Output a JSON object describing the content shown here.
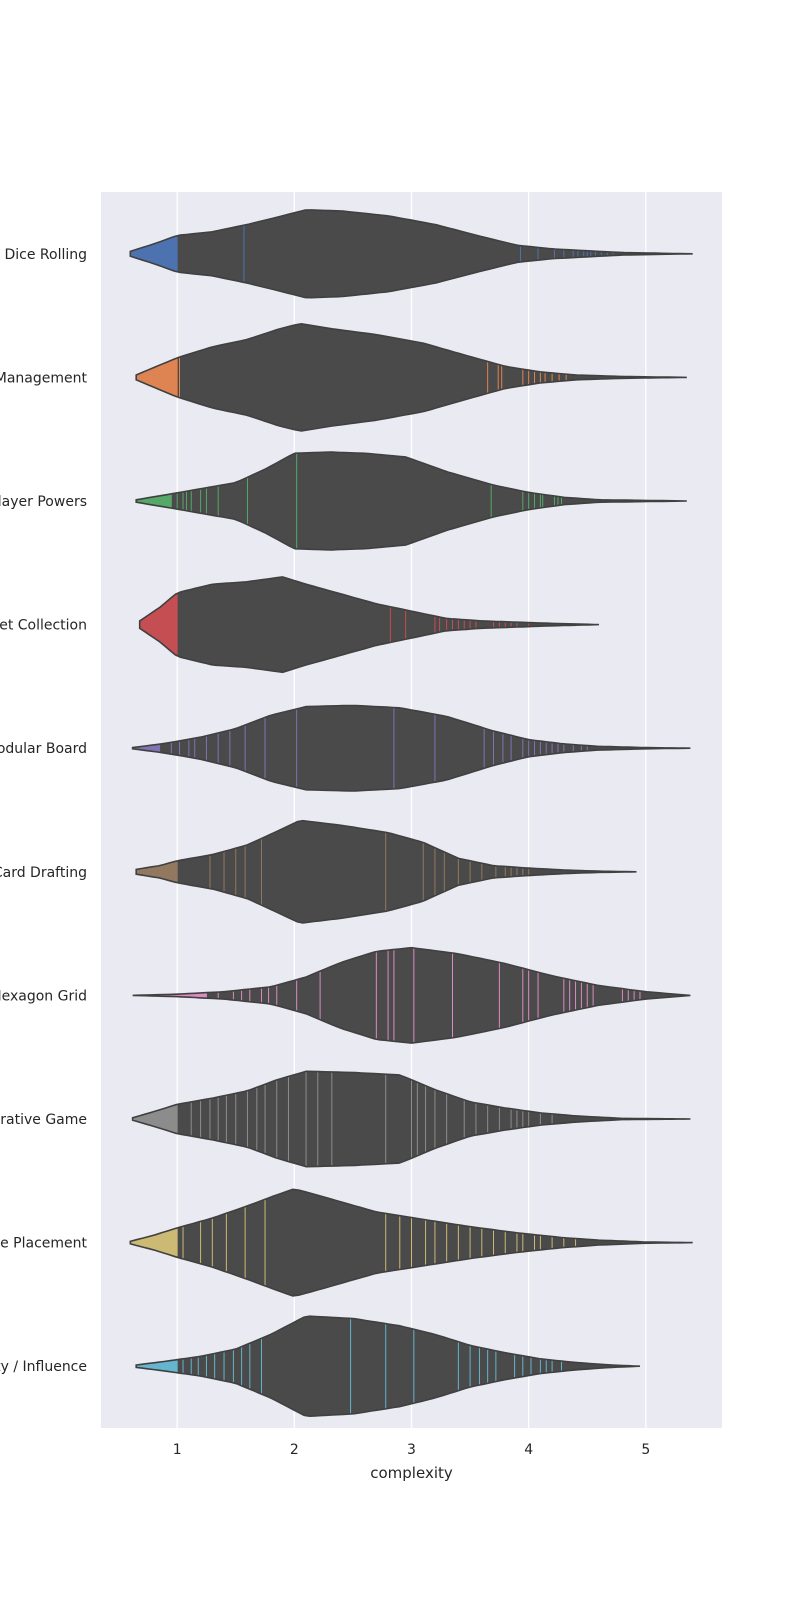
{
  "chart_data": {
    "type": "violin",
    "orientation": "horizontal",
    "xlabel": "complexity",
    "ylabel": "",
    "xlim": [
      0.35,
      5.65
    ],
    "xticks": [
      1,
      2,
      3,
      4,
      5
    ],
    "grid": true,
    "violin_fill": "#4a4a4a",
    "background": "#eaeaf2",
    "series": [
      {
        "category": "Dice Rolling",
        "color": "#4c72b0",
        "min": 0.6,
        "max": 5.4,
        "shape": [
          [
            0.6,
            0.04
          ],
          [
            0.8,
            0.16
          ],
          [
            1.0,
            0.3
          ],
          [
            1.3,
            0.36
          ],
          [
            1.6,
            0.48
          ],
          [
            1.9,
            0.62
          ],
          [
            2.1,
            0.72
          ],
          [
            2.4,
            0.7
          ],
          [
            2.8,
            0.62
          ],
          [
            3.2,
            0.48
          ],
          [
            3.6,
            0.28
          ],
          [
            3.9,
            0.14
          ],
          [
            4.2,
            0.08
          ],
          [
            4.5,
            0.05
          ],
          [
            4.8,
            0.02
          ],
          [
            5.1,
            0.01
          ],
          [
            5.4,
            0.0
          ]
        ],
        "lines": [
          1.0,
          1.57,
          3.93,
          4.08,
          4.22,
          4.3,
          4.38,
          4.42,
          4.47,
          4.5,
          4.53,
          4.57,
          4.62,
          4.67,
          4.72
        ]
      },
      {
        "category": "Hand Management",
        "color": "#dd8452",
        "min": 0.65,
        "max": 5.35,
        "shape": [
          [
            0.65,
            0.04
          ],
          [
            0.8,
            0.16
          ],
          [
            1.0,
            0.32
          ],
          [
            1.3,
            0.5
          ],
          [
            1.6,
            0.62
          ],
          [
            1.85,
            0.78
          ],
          [
            2.05,
            0.88
          ],
          [
            2.3,
            0.8
          ],
          [
            2.7,
            0.7
          ],
          [
            3.1,
            0.56
          ],
          [
            3.5,
            0.34
          ],
          [
            3.8,
            0.18
          ],
          [
            4.1,
            0.09
          ],
          [
            4.4,
            0.04
          ],
          [
            4.8,
            0.015
          ],
          [
            5.35,
            0.0
          ]
        ],
        "lines": [
          1.0,
          1.02,
          3.65,
          3.74,
          3.77,
          3.95,
          4.0,
          4.05,
          4.1,
          4.14,
          4.2,
          4.26,
          4.32
        ]
      },
      {
        "category": "Variable Player Powers",
        "color": "#55a868",
        "min": 0.65,
        "max": 5.35,
        "shape": [
          [
            0.65,
            0.02
          ],
          [
            0.9,
            0.1
          ],
          [
            1.2,
            0.2
          ],
          [
            1.5,
            0.3
          ],
          [
            1.75,
            0.52
          ],
          [
            2.0,
            0.78
          ],
          [
            2.3,
            0.8
          ],
          [
            2.6,
            0.78
          ],
          [
            2.95,
            0.72
          ],
          [
            3.3,
            0.48
          ],
          [
            3.7,
            0.26
          ],
          [
            4.0,
            0.14
          ],
          [
            4.3,
            0.06
          ],
          [
            4.6,
            0.02
          ],
          [
            5.0,
            0.01
          ],
          [
            5.35,
            0.0
          ]
        ],
        "lines": [
          0.95,
          1.0,
          1.05,
          1.08,
          1.12,
          1.2,
          1.25,
          1.35,
          1.6,
          2.02,
          3.68,
          3.95,
          4.0,
          4.05,
          4.1,
          4.12,
          4.22,
          4.25,
          4.28
        ]
      },
      {
        "category": "Set Collection",
        "color": "#c44e52",
        "min": 0.68,
        "max": 4.6,
        "shape": [
          [
            0.68,
            0.06
          ],
          [
            0.85,
            0.28
          ],
          [
            1.0,
            0.52
          ],
          [
            1.3,
            0.66
          ],
          [
            1.6,
            0.7
          ],
          [
            1.9,
            0.78
          ],
          [
            2.1,
            0.66
          ],
          [
            2.4,
            0.5
          ],
          [
            2.7,
            0.34
          ],
          [
            3.0,
            0.22
          ],
          [
            3.3,
            0.1
          ],
          [
            3.6,
            0.06
          ],
          [
            3.9,
            0.04
          ],
          [
            4.2,
            0.02
          ],
          [
            4.6,
            0.0
          ]
        ],
        "lines": [
          1.0,
          2.82,
          2.95,
          3.2,
          3.24,
          3.3,
          3.35,
          3.4,
          3.45,
          3.5,
          3.55,
          3.7,
          3.75,
          3.8,
          3.85,
          3.9,
          4.0
        ]
      },
      {
        "category": "Modular Board",
        "color": "#8172b3",
        "min": 0.62,
        "max": 5.38,
        "shape": [
          [
            0.62,
            0.01
          ],
          [
            0.9,
            0.08
          ],
          [
            1.2,
            0.18
          ],
          [
            1.5,
            0.32
          ],
          [
            1.8,
            0.54
          ],
          [
            2.1,
            0.68
          ],
          [
            2.5,
            0.7
          ],
          [
            2.9,
            0.66
          ],
          [
            3.3,
            0.52
          ],
          [
            3.7,
            0.28
          ],
          [
            4.0,
            0.14
          ],
          [
            4.3,
            0.07
          ],
          [
            4.6,
            0.03
          ],
          [
            5.0,
            0.01
          ],
          [
            5.38,
            0.0
          ]
        ],
        "lines": [
          0.85,
          0.95,
          1.02,
          1.1,
          1.15,
          1.25,
          1.35,
          1.45,
          1.58,
          1.75,
          2.02,
          2.85,
          3.2,
          3.62,
          3.7,
          3.78,
          3.85,
          3.95,
          4.0,
          4.05,
          4.1,
          4.15,
          4.2,
          4.25,
          4.3,
          4.38,
          4.45,
          4.5
        ]
      },
      {
        "category": "Card Drafting",
        "color": "#937860",
        "min": 0.65,
        "max": 4.92,
        "shape": [
          [
            0.65,
            0.04
          ],
          [
            0.85,
            0.1
          ],
          [
            1.0,
            0.18
          ],
          [
            1.3,
            0.28
          ],
          [
            1.6,
            0.44
          ],
          [
            1.85,
            0.66
          ],
          [
            2.05,
            0.84
          ],
          [
            2.4,
            0.76
          ],
          [
            2.8,
            0.64
          ],
          [
            3.1,
            0.48
          ],
          [
            3.4,
            0.22
          ],
          [
            3.7,
            0.1
          ],
          [
            4.0,
            0.06
          ],
          [
            4.3,
            0.03
          ],
          [
            4.6,
            0.01
          ],
          [
            4.92,
            0.0
          ]
        ],
        "lines": [
          1.0,
          1.28,
          1.4,
          1.5,
          1.58,
          1.72,
          2.78,
          3.1,
          3.2,
          3.28,
          3.4,
          3.5,
          3.6,
          3.72,
          3.8,
          3.85,
          3.9,
          3.95,
          4.0
        ]
      },
      {
        "category": "Hexagon Grid",
        "color": "#da8bc3",
        "min": 0.62,
        "max": 5.38,
        "shape": [
          [
            0.62,
            0.0
          ],
          [
            1.0,
            0.02
          ],
          [
            1.4,
            0.06
          ],
          [
            1.8,
            0.14
          ],
          [
            2.1,
            0.3
          ],
          [
            2.4,
            0.54
          ],
          [
            2.7,
            0.72
          ],
          [
            3.0,
            0.78
          ],
          [
            3.4,
            0.68
          ],
          [
            3.8,
            0.52
          ],
          [
            4.2,
            0.32
          ],
          [
            4.6,
            0.16
          ],
          [
            5.0,
            0.06
          ],
          [
            5.38,
            0.0
          ]
        ],
        "lines": [
          1.25,
          1.35,
          1.48,
          1.55,
          1.62,
          1.72,
          1.78,
          1.85,
          2.02,
          2.22,
          2.7,
          2.8,
          2.85,
          3.02,
          3.35,
          3.75,
          3.95,
          4.0,
          4.08,
          4.3,
          4.35,
          4.4,
          4.45,
          4.5,
          4.55,
          4.8,
          4.85,
          4.9,
          4.95
        ]
      },
      {
        "category": "Cooperative Game",
        "color": "#8c8c8c",
        "min": 0.62,
        "max": 5.38,
        "shape": [
          [
            0.62,
            0.02
          ],
          [
            0.8,
            0.12
          ],
          [
            1.0,
            0.24
          ],
          [
            1.3,
            0.34
          ],
          [
            1.6,
            0.46
          ],
          [
            1.85,
            0.64
          ],
          [
            2.1,
            0.78
          ],
          [
            2.5,
            0.76
          ],
          [
            2.9,
            0.72
          ],
          [
            3.2,
            0.48
          ],
          [
            3.5,
            0.28
          ],
          [
            3.8,
            0.18
          ],
          [
            4.1,
            0.1
          ],
          [
            4.4,
            0.05
          ],
          [
            4.8,
            0.01
          ],
          [
            5.38,
            0.0
          ]
        ],
        "lines": [
          1.0,
          1.12,
          1.2,
          1.28,
          1.35,
          1.42,
          1.5,
          1.6,
          1.68,
          1.75,
          1.85,
          1.95,
          2.1,
          2.2,
          2.32,
          2.78,
          3.0,
          3.05,
          3.12,
          3.2,
          3.3,
          3.45,
          3.55,
          3.65,
          3.75,
          3.85,
          3.9,
          3.95,
          4.0,
          4.1,
          4.2
        ]
      },
      {
        "category": "Tile Placement",
        "color": "#ccb974",
        "min": 0.6,
        "max": 5.4,
        "shape": [
          [
            0.6,
            0.02
          ],
          [
            0.8,
            0.12
          ],
          [
            1.0,
            0.24
          ],
          [
            1.3,
            0.4
          ],
          [
            1.6,
            0.6
          ],
          [
            1.85,
            0.78
          ],
          [
            2.0,
            0.88
          ],
          [
            2.3,
            0.72
          ],
          [
            2.7,
            0.5
          ],
          [
            3.1,
            0.38
          ],
          [
            3.5,
            0.26
          ],
          [
            3.9,
            0.16
          ],
          [
            4.3,
            0.08
          ],
          [
            4.6,
            0.04
          ],
          [
            5.0,
            0.01
          ],
          [
            5.4,
            0.0
          ]
        ],
        "lines": [
          1.0,
          1.05,
          1.2,
          1.3,
          1.42,
          1.58,
          1.75,
          2.78,
          2.9,
          3.0,
          3.12,
          3.2,
          3.3,
          3.4,
          3.5,
          3.6,
          3.7,
          3.8,
          3.9,
          3.95,
          4.05,
          4.1,
          4.2,
          4.3,
          4.4
        ]
      },
      {
        "category": "Area Majority / Influence",
        "color": "#64b5cd",
        "min": 0.65,
        "max": 4.95,
        "shape": [
          [
            0.65,
            0.02
          ],
          [
            0.9,
            0.08
          ],
          [
            1.2,
            0.16
          ],
          [
            1.5,
            0.28
          ],
          [
            1.8,
            0.52
          ],
          [
            2.1,
            0.82
          ],
          [
            2.5,
            0.78
          ],
          [
            2.9,
            0.66
          ],
          [
            3.2,
            0.52
          ],
          [
            3.5,
            0.34
          ],
          [
            3.8,
            0.22
          ],
          [
            4.1,
            0.12
          ],
          [
            4.4,
            0.06
          ],
          [
            4.7,
            0.02
          ],
          [
            4.95,
            0.0
          ]
        ],
        "lines": [
          1.0,
          1.05,
          1.12,
          1.18,
          1.25,
          1.32,
          1.4,
          1.48,
          1.55,
          1.62,
          1.72,
          2.48,
          2.78,
          3.02,
          3.4,
          3.5,
          3.58,
          3.65,
          3.72,
          3.88,
          3.95,
          4.02,
          4.1,
          4.15,
          4.2,
          4.28
        ]
      }
    ]
  }
}
